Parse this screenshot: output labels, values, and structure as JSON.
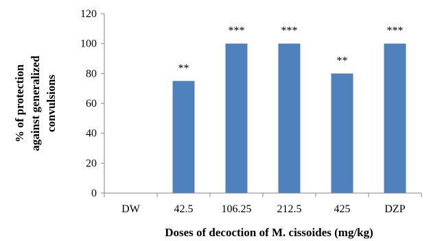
{
  "chart_data": {
    "type": "bar",
    "categories": [
      "DW",
      "42.5",
      "106.25",
      "212.5",
      "425",
      "DZP"
    ],
    "values": [
      0,
      75,
      100,
      100,
      80,
      100
    ],
    "data_labels": [
      "",
      "**",
      "***",
      "***",
      "**",
      "***"
    ],
    "xlabel": "Doses of decoction of M. cissoides (mg/kg)",
    "ylabel_lines": [
      "% of protection",
      "against  generalized",
      "convulsions"
    ],
    "ylim": [
      0,
      120
    ],
    "yticks": [
      0,
      20,
      40,
      60,
      80,
      100,
      120
    ],
    "grid": false,
    "legend": "none",
    "bar_color": "#4F81BD"
  }
}
